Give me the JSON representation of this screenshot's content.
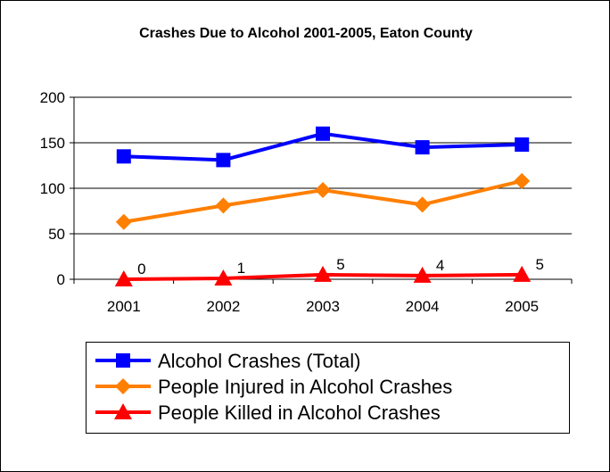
{
  "chart_data": {
    "type": "line",
    "title": "Crashes Due to Alcohol 2001-2005, Eaton County",
    "categories": [
      "2001",
      "2002",
      "2003",
      "2004",
      "2005"
    ],
    "xlabel": "",
    "ylabel": "",
    "ylim": [
      0,
      200
    ],
    "yticks": [
      "0",
      "50",
      "100",
      "150",
      "200"
    ],
    "grid": true,
    "legend_position": "bottom",
    "series": [
      {
        "name": "Alcohol Crashes (Total)",
        "values": [
          135,
          131,
          160,
          145,
          148
        ],
        "color": "#0000ff",
        "marker": "square"
      },
      {
        "name": "People Injured in Alcohol Crashes",
        "values": [
          63,
          81,
          98,
          82,
          108
        ],
        "color": "#ff7f00",
        "marker": "diamond"
      },
      {
        "name": "People Killed in Alcohol Crashes",
        "values": [
          0,
          1,
          5,
          4,
          5
        ],
        "color": "#ff0000",
        "marker": "triangle",
        "data_labels": [
          "0",
          "1",
          "5",
          "4",
          "5"
        ]
      }
    ]
  }
}
